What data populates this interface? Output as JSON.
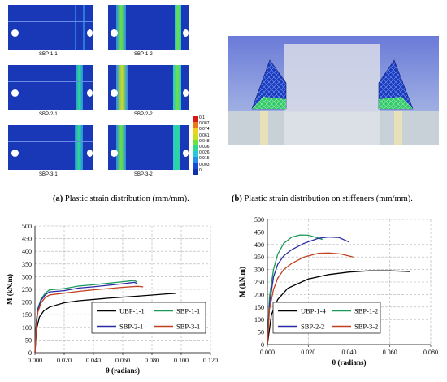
{
  "figure_a": {
    "panels": [
      {
        "id": "SBP-1-1",
        "label": "SBP-1-1"
      },
      {
        "id": "SBP-1-2",
        "label": "SBP-1-2"
      },
      {
        "id": "SBP-2-1",
        "label": "SBP-2-1"
      },
      {
        "id": "SBP-2-2",
        "label": "SBP-2-2"
      },
      {
        "id": "SBP-3-1",
        "label": "SBP-3-1"
      },
      {
        "id": "SBP-3-2",
        "label": "SBP-3-2"
      }
    ],
    "colorbar": {
      "labels": [
        "0.1",
        "0.087",
        "0.074",
        "0.061",
        "0.048",
        "0.036",
        "0.026",
        "0.015",
        "0.003",
        "0"
      ],
      "colors": [
        "#d81818",
        "#e87818",
        "#f0d020",
        "#c8e020",
        "#70e040",
        "#30d890",
        "#28c8d8",
        "#2890e8",
        "#1848d8",
        "#1030b0"
      ]
    },
    "caption_tag": "(a)",
    "caption_text": " Plastic strain distribution (mm/mm)."
  },
  "figure_b": {
    "caption_tag": "(b)",
    "caption_text": " Plastic strain distribution on stiffeners (mm/mm)."
  },
  "chart_data": [
    {
      "type": "line",
      "xlabel": "θ (radians)",
      "ylabel": "M (kN.m)",
      "xlim": [
        0,
        0.12
      ],
      "ylim": [
        0,
        500
      ],
      "xticks": [
        "0.000",
        "0.020",
        "0.040",
        "0.060",
        "0.080",
        "0.100",
        "0.120"
      ],
      "yticks": [
        "0",
        "50",
        "100",
        "150",
        "200",
        "250",
        "300",
        "350",
        "400",
        "450",
        "500"
      ],
      "grid": "dashed",
      "legend": "bottom-right",
      "series": [
        {
          "name": "UBP-1-1",
          "color": "#000000",
          "x": [
            0,
            0.001,
            0.003,
            0.006,
            0.01,
            0.02,
            0.03,
            0.05,
            0.07,
            0.09,
            0.096
          ],
          "y": [
            0,
            90,
            140,
            165,
            180,
            197,
            205,
            215,
            223,
            232,
            234
          ]
        },
        {
          "name": "SBP-1-1",
          "color": "#1a9a5a",
          "x": [
            0,
            0.001,
            0.002,
            0.004,
            0.007,
            0.01,
            0.02,
            0.03,
            0.04,
            0.05,
            0.06,
            0.068,
            0.07
          ],
          "y": [
            0,
            130,
            175,
            210,
            235,
            248,
            253,
            263,
            268,
            274,
            280,
            285,
            278
          ]
        },
        {
          "name": "SBP-2-1",
          "color": "#2a2aa8",
          "x": [
            0,
            0.001,
            0.002,
            0.004,
            0.007,
            0.01,
            0.02,
            0.03,
            0.04,
            0.05,
            0.06,
            0.068,
            0.07
          ],
          "y": [
            0,
            125,
            170,
            205,
            228,
            240,
            245,
            255,
            260,
            266,
            272,
            278,
            272
          ]
        },
        {
          "name": "SBP-3-1",
          "color": "#c04020",
          "x": [
            0,
            0.001,
            0.002,
            0.004,
            0.007,
            0.01,
            0.02,
            0.03,
            0.04,
            0.05,
            0.06,
            0.07,
            0.074
          ],
          "y": [
            0,
            115,
            160,
            195,
            218,
            228,
            235,
            242,
            248,
            253,
            258,
            262,
            260
          ]
        }
      ]
    },
    {
      "type": "line",
      "xlabel": "θ (radians)",
      "ylabel": "M (kN.m)",
      "xlim": [
        0,
        0.08
      ],
      "ylim": [
        0,
        500
      ],
      "xticks": [
        "0.000",
        "0.020",
        "0.040",
        "0.060",
        "0.080"
      ],
      "yticks": [
        "0",
        "50",
        "100",
        "150",
        "200",
        "250",
        "300",
        "350",
        "400",
        "450",
        "500"
      ],
      "grid": "dashed",
      "legend": "bottom-left",
      "series": [
        {
          "name": "UBP-1-4",
          "color": "#000000",
          "x": [
            0,
            0.002,
            0.005,
            0.01,
            0.02,
            0.03,
            0.04,
            0.05,
            0.06,
            0.07
          ],
          "y": [
            0,
            120,
            180,
            225,
            262,
            280,
            290,
            295,
            295,
            292
          ]
        },
        {
          "name": "SBP-1-2",
          "color": "#1a9a5a",
          "x": [
            0,
            0.001,
            0.003,
            0.005,
            0.008,
            0.012,
            0.016,
            0.02,
            0.024,
            0.027
          ],
          "y": [
            0,
            190,
            300,
            360,
            405,
            430,
            438,
            437,
            428,
            420
          ]
        },
        {
          "name": "SBP-2-2",
          "color": "#2a2aa8",
          "x": [
            0,
            0.001,
            0.003,
            0.005,
            0.008,
            0.012,
            0.018,
            0.025,
            0.03,
            0.035,
            0.04
          ],
          "y": [
            0,
            160,
            270,
            320,
            355,
            380,
            405,
            425,
            430,
            428,
            410
          ]
        },
        {
          "name": "SBP-3-2",
          "color": "#c04020",
          "x": [
            0,
            0.001,
            0.003,
            0.005,
            0.008,
            0.012,
            0.018,
            0.025,
            0.03,
            0.036,
            0.042
          ],
          "y": [
            0,
            140,
            220,
            265,
            300,
            325,
            350,
            365,
            366,
            362,
            350
          ]
        }
      ]
    }
  ]
}
